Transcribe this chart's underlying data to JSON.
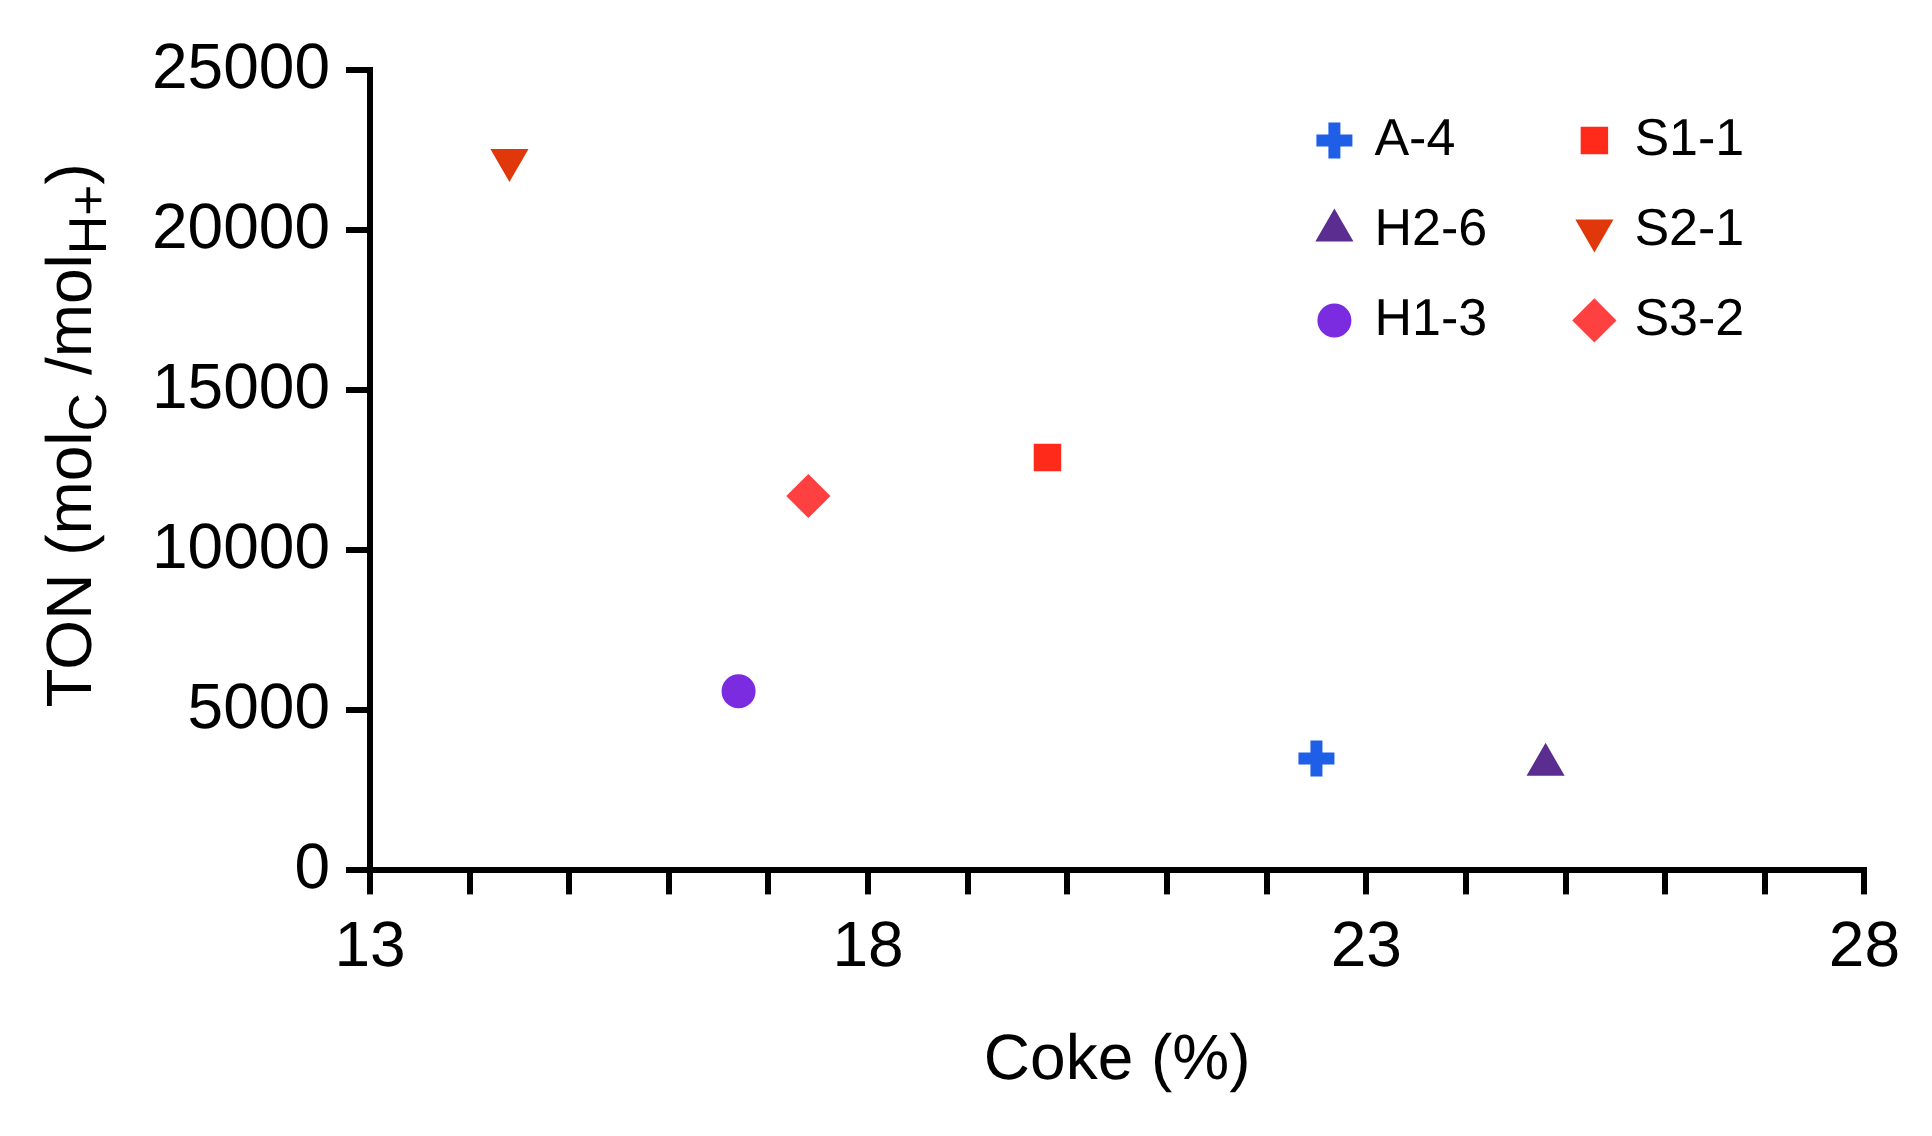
{
  "chart_data": {
    "type": "scatter",
    "xlabel": "Coke (%)",
    "ylabel": "TON (mol$_{C}$ /mol$_{H+}$)",
    "xlim": [
      13,
      28
    ],
    "xticks": [
      13,
      {
        "value": 14,
        "label": null
      },
      {
        "value": 15,
        "label": null
      },
      {
        "value": 16,
        "label": null
      },
      {
        "value": 17,
        "label": null
      },
      18,
      {
        "value": 19,
        "label": null
      },
      {
        "value": 20,
        "label": null
      },
      {
        "value": 21,
        "label": null
      },
      {
        "value": 22,
        "label": null
      },
      23,
      {
        "value": 24,
        "label": null
      },
      {
        "value": 25,
        "label": null
      },
      {
        "value": 26,
        "label": null
      },
      {
        "value": 27,
        "label": null
      },
      28
    ],
    "ylim": [
      0,
      25000
    ],
    "yticks": [
      0,
      5000,
      10000,
      15000,
      20000,
      25000
    ],
    "grid": false,
    "legend": "top right",
    "series": [
      {
        "name": "A-4",
        "color": "#1f5fe8",
        "marker": "cross",
        "x": [
          22.5
        ],
        "values": [
          3500
        ]
      },
      {
        "name": "H2-6",
        "color": "#5b2d90",
        "marker": "triangle",
        "x": [
          24.8
        ],
        "values": [
          3300
        ]
      },
      {
        "name": "H1-3",
        "color": "#7b2be0",
        "marker": "circle",
        "x": [
          16.7
        ],
        "values": [
          5600
        ]
      },
      {
        "name": "S1-1",
        "color": "#ff2a1a",
        "marker": "square",
        "x": [
          19.8
        ],
        "values": [
          12900
        ]
      },
      {
        "name": "S2-1",
        "color": "#e0380a",
        "marker": "triangle-down",
        "x": [
          14.4
        ],
        "values": [
          22200
        ]
      },
      {
        "name": "S3-2",
        "color": "#ff4040",
        "marker": "diamond",
        "x": [
          17.4
        ],
        "values": [
          11700
        ]
      }
    ]
  }
}
